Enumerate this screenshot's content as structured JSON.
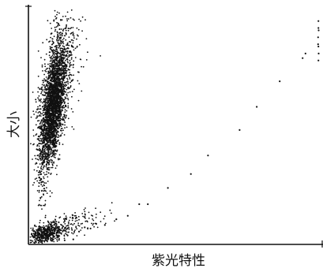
{
  "chart_data": {
    "type": "scatter",
    "title": "",
    "xlabel": "紫光特性",
    "ylabel": "大小",
    "xlim": [
      0,
      100
    ],
    "ylim": [
      0,
      100
    ],
    "grid": false,
    "legend": "none",
    "colors": {
      "points": "#111111",
      "axes": "#111111",
      "background": "#ffffff"
    },
    "series": [
      {
        "clusters": [
          {
            "cx": 7.0,
            "cy": 58.0,
            "sx": 2.2,
            "sy": 13.0,
            "rho": 0.55,
            "n": 2600
          },
          {
            "cx": 8.5,
            "cy": 66.0,
            "sx": 4.0,
            "sy": 15.0,
            "rho": 0.55,
            "n": 450
          },
          {
            "cx": 9.0,
            "cy": 84.0,
            "sx": 2.0,
            "sy": 8.0,
            "rho": 0.0,
            "n": 140
          },
          {
            "cx": 4.5,
            "cy": 3.5,
            "sx": 3.0,
            "sy": 2.0,
            "rho": 0.4,
            "n": 520
          },
          {
            "cx": 14.0,
            "cy": 8.0,
            "sx": 6.0,
            "sy": 3.2,
            "rho": 0.6,
            "n": 160
          },
          {
            "cx": 3.0,
            "cy": 38.0,
            "sx": 0.9,
            "sy": 16.0,
            "rho": 0.0,
            "n": 120
          }
        ],
        "points": [
          [
            99.5,
            95
          ],
          [
            99.6,
            91
          ],
          [
            99.4,
            88
          ],
          [
            99.5,
            84
          ],
          [
            99.6,
            81
          ],
          [
            99.5,
            78
          ],
          [
            99.4,
            85
          ],
          [
            99.5,
            92
          ],
          [
            94,
            79
          ],
          [
            95,
            81
          ],
          [
            86,
            69
          ],
          [
            78,
            58
          ],
          [
            55,
            29
          ],
          [
            47,
            23
          ],
          [
            40,
            16
          ],
          [
            37,
            16
          ],
          [
            33,
            11
          ],
          [
            29,
            9.5
          ],
          [
            25,
            7
          ],
          [
            22,
            7.5
          ],
          [
            20,
            5.5
          ],
          [
            18,
            6
          ],
          [
            16,
            4.2
          ],
          [
            12,
            2.5
          ],
          [
            9,
            0.6
          ],
          [
            11,
            0.4
          ],
          [
            14,
            0.8
          ],
          [
            72,
            48
          ],
          [
            61,
            37
          ]
        ]
      }
    ]
  }
}
